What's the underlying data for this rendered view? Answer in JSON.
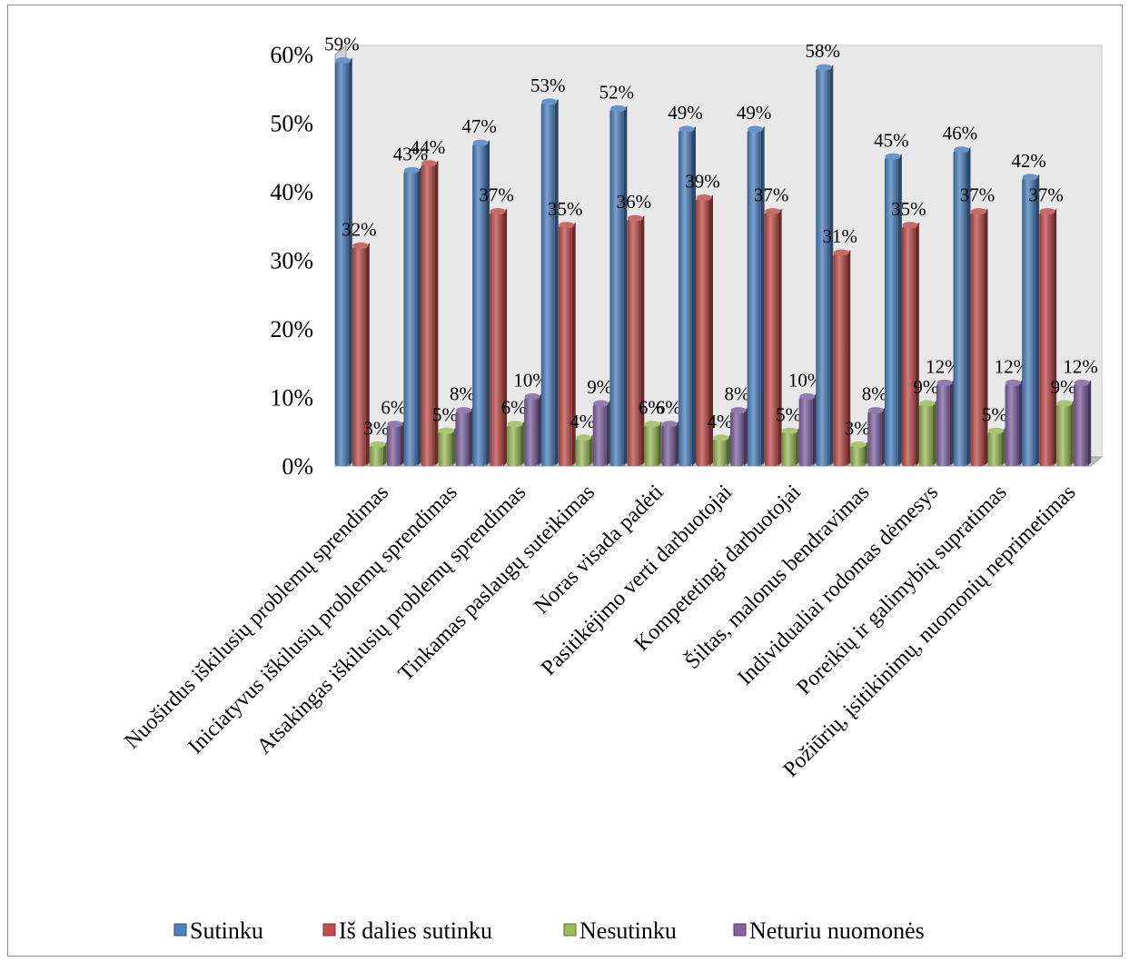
{
  "chart_data": {
    "type": "bar",
    "three_d": true,
    "categories": [
      "Nuoširdus iškilusių problemų sprendimas",
      "Iniciatyvus  iškilusių problemų sprendimas",
      "Atsakingas  iškilusių problemų sprendimas",
      "Tinkamas paslaugų suteikimas",
      "Noras visada  padėti",
      "Pasitikėjimo verti darbuotojai",
      "Kompetetingi darbuotojai",
      "Šiltas, malonus bendravimas",
      "Individualiai  rodomas dėmesys",
      "Poreikių ir galimybių supratimas",
      "Požiūrių, įsitikinimų, nuomonių neprimetimas"
    ],
    "series": [
      {
        "name": "Sutinku",
        "color": "#4f81bd",
        "values": [
          59,
          43,
          47,
          53,
          52,
          49,
          49,
          58,
          45,
          46,
          42
        ],
        "labels": [
          "59%",
          "43%",
          "47%",
          "53%",
          "52%",
          "49%",
          "49%",
          "58%",
          "45%",
          "46%",
          "42%"
        ]
      },
      {
        "name": "Iš dalies sutinku",
        "color": "#c0504d",
        "values": [
          32,
          44,
          37,
          35,
          36,
          39,
          37,
          31,
          35,
          37,
          37
        ],
        "labels": [
          "32%",
          "44%",
          "37%",
          "35%",
          "36%",
          "39%",
          "37%",
          "31%",
          "35%",
          "37%",
          "37%"
        ]
      },
      {
        "name": "Nesutinku",
        "color": "#9bbb59",
        "values": [
          3,
          5,
          6,
          4,
          6,
          4,
          5,
          3,
          9,
          5,
          9
        ],
        "labels": [
          "3%",
          "5%",
          "6%",
          "4%",
          "6%",
          "4%",
          "5%",
          "3%",
          "9%",
          "5%",
          "9%"
        ]
      },
      {
        "name": "Neturiu nuomonės",
        "color": "#8064a2",
        "values": [
          6,
          8,
          10,
          9,
          6,
          8,
          10,
          8,
          12,
          12,
          12
        ],
        "labels": [
          "6%",
          "8%",
          "10%",
          "9%",
          "6%",
          "8%",
          "10%",
          "8%",
          "12%",
          "12%",
          "12%"
        ]
      }
    ],
    "y_ticks": [
      "0%",
      "10%",
      "20%",
      "30%",
      "40%",
      "50%",
      "60%"
    ],
    "ylim": [
      0,
      60
    ],
    "y_unit": "%",
    "grid": false,
    "legend_position": "bottom"
  }
}
